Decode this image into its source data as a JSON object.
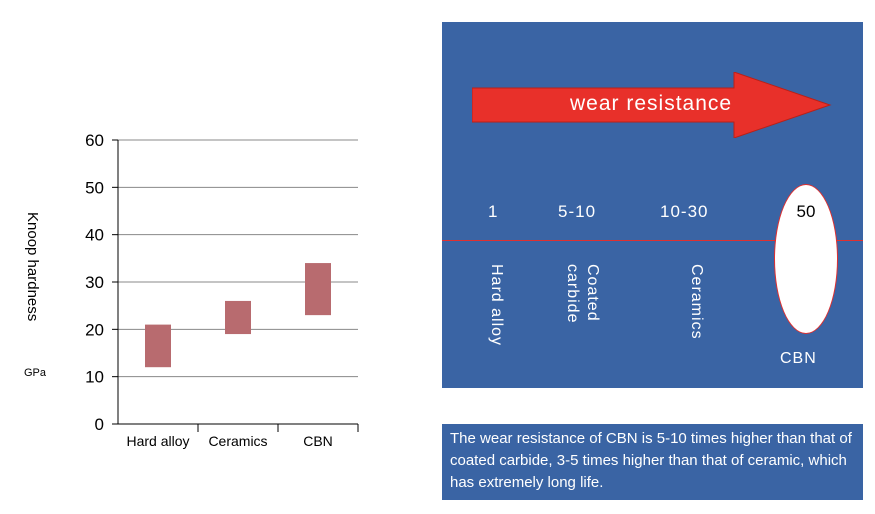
{
  "chart_data": {
    "type": "bar",
    "subtype": "floating-range",
    "categories": [
      "Hard alloy",
      "Ceramics",
      "CBN"
    ],
    "ranges": [
      [
        12,
        21
      ],
      [
        19,
        26
      ],
      [
        23,
        34
      ]
    ],
    "y_ticks": [
      "0",
      "10",
      "20",
      "30",
      "40",
      "50",
      "60"
    ],
    "ylim": [
      0,
      60
    ],
    "ylabel": "Knoop hardness",
    "yunit": "GPa",
    "grid": true,
    "bar_color": "#b86b6f"
  },
  "panel": {
    "arrow_label": "wear resistance",
    "multipliers": [
      "1",
      "5-10",
      "10-30",
      "50"
    ],
    "materials": [
      "Hard alloy",
      "Coated carbide",
      "Ceramics",
      "CBN"
    ],
    "material_lines": {
      "hard_alloy": "Hard alloy",
      "coated_1": "Coated",
      "coated_2": "carbide",
      "ceramics": "Ceramics",
      "cbn": "CBN"
    },
    "background_color": "#3a64a4",
    "arrow_color": "#e8302a",
    "note": "The wear resistance of CBN is 5-10 times higher than that of coated carbide, 3-5 times higher than that of ceramic, which has extremely long life."
  }
}
